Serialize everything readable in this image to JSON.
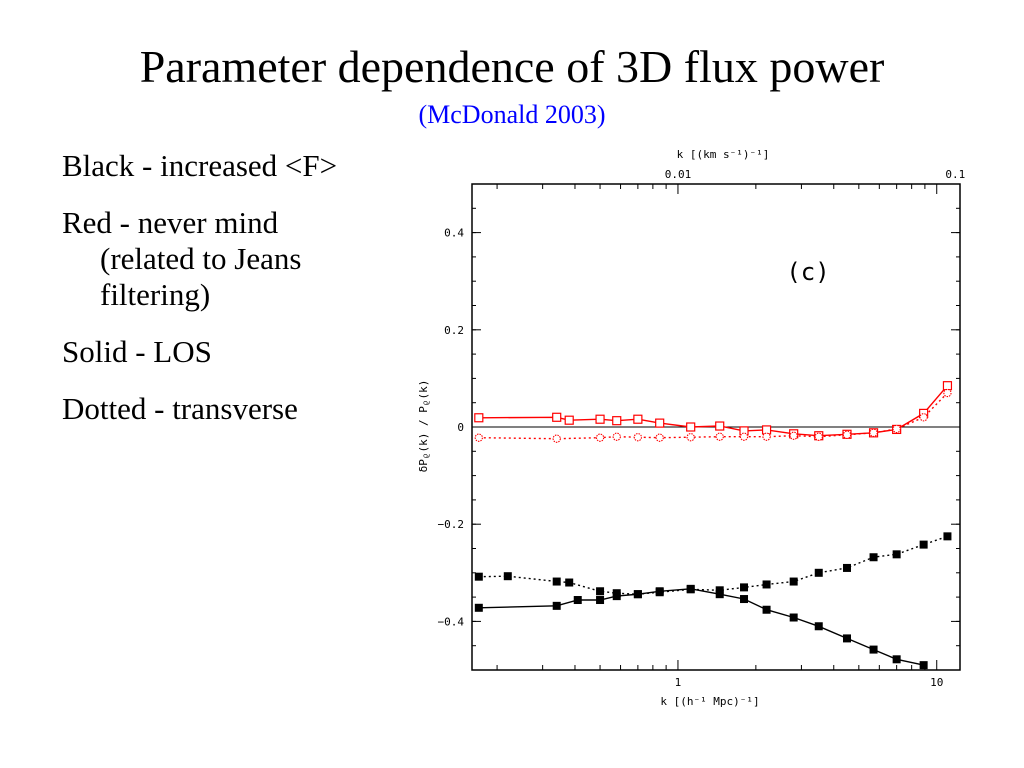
{
  "slide": {
    "title": "Parameter dependence of 3D flux power",
    "subtitle": "(McDonald 2003)",
    "bullets": [
      "Black - increased <F>",
      "Red - never mind (related to Jeans filtering)",
      "Solid - LOS",
      "Dotted - transverse"
    ]
  },
  "chart_data": {
    "type": "line",
    "annotation": "(c)",
    "xlabel": "k [(h⁻¹ Mpc)⁻¹]",
    "ylabel": "δPᵨ(k) / Pᵨ(k)",
    "top_axis_label": "k [(km s⁻¹)⁻¹]",
    "x_scale": "log",
    "xlim": [
      0.16,
      12.3
    ],
    "ylim": [
      -0.5,
      0.5
    ],
    "x_ticks": [
      1,
      10
    ],
    "x_tick_labels": [
      "1",
      "10"
    ],
    "y_ticks": [
      0.4,
      0.2,
      0,
      -0.2,
      -0.4
    ],
    "y_tick_labels": [
      "0.4",
      "0.2",
      "0",
      "−0.2",
      "−0.4"
    ],
    "top_ticks": [
      0.01,
      0.1
    ],
    "top_tick_labels": [
      "0.01",
      "0.1"
    ],
    "top_tick_x_positions": [
      1.0,
      11.8
    ],
    "zero_line": true,
    "colors": {
      "black": "#000000",
      "red": "#ff0000"
    },
    "series": [
      {
        "color": "black",
        "line": "solid",
        "marker": "filled-square",
        "x": [
          0.17,
          0.34,
          0.41,
          0.5,
          0.58,
          0.7,
          0.85,
          1.12,
          1.45,
          1.8,
          2.2,
          2.8,
          3.5,
          4.5,
          5.7,
          7.0,
          8.9
        ],
        "y": [
          -0.372,
          -0.368,
          -0.356,
          -0.356,
          -0.348,
          -0.344,
          -0.338,
          -0.333,
          -0.344,
          -0.354,
          -0.376,
          -0.392,
          -0.41,
          -0.435,
          -0.458,
          -0.478,
          -0.49
        ]
      },
      {
        "color": "black",
        "line": "dotted",
        "marker": "filled-square",
        "x": [
          0.17,
          0.22,
          0.34,
          0.38,
          0.5,
          0.58,
          0.7,
          0.85,
          1.12,
          1.45,
          1.8,
          2.2,
          2.8,
          3.5,
          4.5,
          5.7,
          7.0,
          8.9,
          11.0
        ],
        "y": [
          -0.308,
          -0.307,
          -0.318,
          -0.32,
          -0.338,
          -0.342,
          -0.344,
          -0.34,
          -0.334,
          -0.336,
          -0.33,
          -0.324,
          -0.318,
          -0.3,
          -0.29,
          -0.268,
          -0.262,
          -0.242,
          -0.225
        ]
      },
      {
        "color": "red",
        "line": "solid",
        "marker": "open-square",
        "x": [
          0.17,
          0.34,
          0.38,
          0.5,
          0.58,
          0.7,
          0.85,
          1.12,
          1.45,
          1.8,
          2.2,
          2.8,
          3.5,
          4.5,
          5.7,
          7.0,
          8.9,
          11.0
        ],
        "y": [
          0.019,
          0.02,
          0.014,
          0.016,
          0.013,
          0.016,
          0.008,
          0.0,
          0.002,
          -0.008,
          -0.006,
          -0.014,
          -0.018,
          -0.015,
          -0.012,
          -0.005,
          0.028,
          0.085
        ]
      },
      {
        "color": "red",
        "line": "dotted",
        "marker": "open-circle",
        "x": [
          0.17,
          0.34,
          0.5,
          0.58,
          0.7,
          0.85,
          1.12,
          1.45,
          1.8,
          2.2,
          2.8,
          3.5,
          4.5,
          5.7,
          7.0,
          8.9,
          11.0
        ],
        "y": [
          -0.022,
          -0.024,
          -0.022,
          -0.02,
          -0.021,
          -0.022,
          -0.021,
          -0.02,
          -0.02,
          -0.02,
          -0.018,
          -0.02,
          -0.016,
          -0.012,
          -0.004,
          0.02,
          0.07
        ]
      }
    ]
  }
}
